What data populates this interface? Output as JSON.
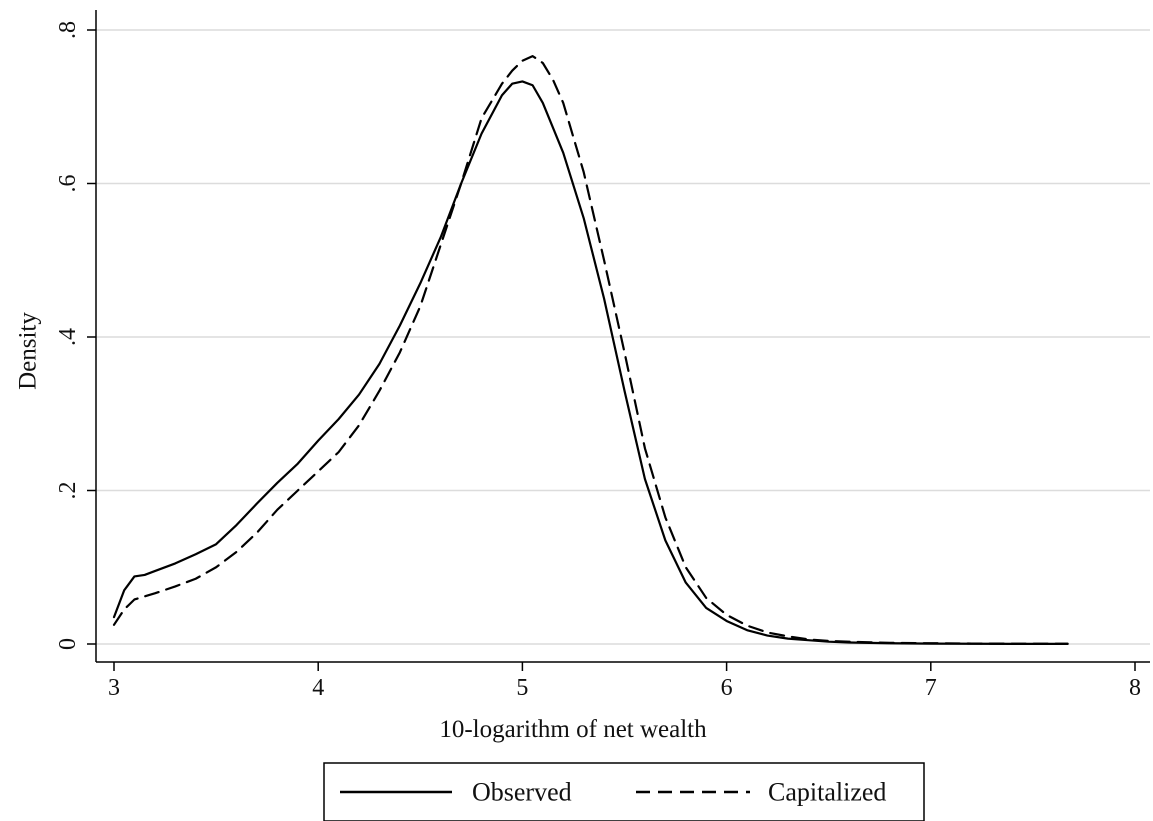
{
  "chart_data": {
    "type": "line",
    "title": "",
    "xlabel": "10-logarithm of net wealth",
    "ylabel": "Density",
    "xlim": [
      3,
      8
    ],
    "ylim": [
      0,
      0.8
    ],
    "x_ticks": [
      3,
      4,
      5,
      6,
      7,
      8
    ],
    "x_tick_labels": [
      "3",
      "4",
      "5",
      "6",
      "7",
      "8"
    ],
    "y_ticks": [
      0,
      0.2,
      0.4,
      0.6,
      0.8
    ],
    "y_tick_labels": [
      "0",
      ".2",
      ".4",
      ".6",
      ".8"
    ],
    "grid": "horizontal",
    "legend_position": "bottom",
    "series": [
      {
        "name": "Observed",
        "line_style": "solid",
        "color": "#000000",
        "x": [
          3.0,
          3.05,
          3.1,
          3.15,
          3.2,
          3.3,
          3.4,
          3.5,
          3.6,
          3.7,
          3.8,
          3.9,
          4.0,
          4.1,
          4.2,
          4.3,
          4.4,
          4.5,
          4.6,
          4.7,
          4.8,
          4.9,
          4.95,
          5.0,
          5.05,
          5.1,
          5.2,
          5.3,
          5.4,
          5.5,
          5.6,
          5.7,
          5.8,
          5.9,
          6.0,
          6.1,
          6.2,
          6.3,
          6.4,
          6.5,
          6.6,
          6.8,
          7.0,
          7.2,
          7.4,
          7.67
        ],
        "y": [
          0.035,
          0.07,
          0.088,
          0.09,
          0.095,
          0.105,
          0.117,
          0.13,
          0.155,
          0.183,
          0.21,
          0.235,
          0.265,
          0.293,
          0.325,
          0.365,
          0.415,
          0.47,
          0.53,
          0.6,
          0.665,
          0.715,
          0.73,
          0.733,
          0.728,
          0.705,
          0.64,
          0.555,
          0.45,
          0.33,
          0.215,
          0.135,
          0.08,
          0.047,
          0.03,
          0.018,
          0.011,
          0.007,
          0.005,
          0.003,
          0.002,
          0.001,
          0.0005,
          0.0003,
          0.0002,
          0.0002
        ]
      },
      {
        "name": "Capitalized",
        "line_style": "dashed",
        "color": "#000000",
        "x": [
          3.0,
          3.05,
          3.1,
          3.15,
          3.2,
          3.3,
          3.4,
          3.5,
          3.6,
          3.7,
          3.8,
          3.9,
          4.0,
          4.1,
          4.2,
          4.3,
          4.4,
          4.5,
          4.6,
          4.7,
          4.8,
          4.9,
          4.95,
          5.0,
          5.05,
          5.1,
          5.15,
          5.2,
          5.3,
          5.4,
          5.5,
          5.6,
          5.7,
          5.8,
          5.9,
          6.0,
          6.1,
          6.2,
          6.3,
          6.4,
          6.5,
          6.6,
          6.8,
          7.0,
          7.2,
          7.4,
          7.67
        ],
        "y": [
          0.025,
          0.045,
          0.058,
          0.062,
          0.066,
          0.075,
          0.085,
          0.1,
          0.12,
          0.145,
          0.175,
          0.2,
          0.225,
          0.25,
          0.285,
          0.33,
          0.38,
          0.44,
          0.52,
          0.6,
          0.685,
          0.73,
          0.747,
          0.76,
          0.766,
          0.757,
          0.735,
          0.705,
          0.615,
          0.5,
          0.38,
          0.255,
          0.165,
          0.1,
          0.06,
          0.038,
          0.024,
          0.015,
          0.01,
          0.006,
          0.004,
          0.003,
          0.0015,
          0.001,
          0.0006,
          0.0004,
          0.0003
        ]
      }
    ]
  }
}
